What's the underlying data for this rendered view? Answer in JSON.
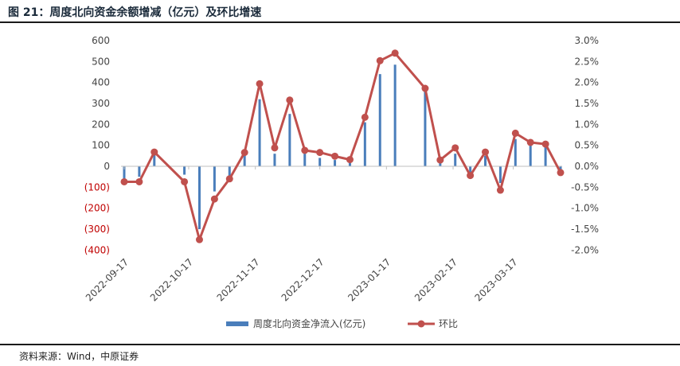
{
  "header": {
    "title": "图 21：周度北向资金余额增减（亿元）及环比增速"
  },
  "footer": {
    "source": "资料来源：Wind，中原证券"
  },
  "colors": {
    "bar": "#4a7ebb",
    "line": "#c0504d",
    "negative_label": "#c00000",
    "rule": "#1a1a1a"
  },
  "chart_data": {
    "type": "bar",
    "x_type": "date",
    "x_tick_labels": [
      "2022-09-17",
      "2022-10-17",
      "2022-11-17",
      "2022-12-17",
      "2023-01-17",
      "2023-02-17",
      "2023-03-17"
    ],
    "dates": [
      "2022-09-17",
      "2022-09-24",
      "2022-10-01",
      "2022-10-08",
      "2022-10-15",
      "2022-10-22",
      "2022-10-29",
      "2022-11-05",
      "2022-11-12",
      "2022-11-19",
      "2022-11-26",
      "2022-12-03",
      "2022-12-10",
      "2022-12-17",
      "2022-12-24",
      "2022-12-31",
      "2023-01-07",
      "2023-01-14",
      "2023-01-21",
      "2023-01-28",
      "2023-02-04",
      "2023-02-11",
      "2023-02-18",
      "2023-02-25",
      "2023-03-04",
      "2023-03-11",
      "2023-03-18",
      "2023-03-25",
      "2023-04-01",
      "2023-04-08"
    ],
    "series": [
      {
        "name": "周度北向资金净流入(亿元)",
        "type": "bar",
        "axis": "left",
        "values": [
          -60,
          -50,
          70,
          null,
          -40,
          -300,
          -120,
          -50,
          60,
          320,
          60,
          250,
          60,
          40,
          30,
          20,
          210,
          440,
          485,
          null,
          360,
          20,
          60,
          -30,
          50,
          -80,
          130,
          110,
          100,
          -15
        ]
      },
      {
        "name": "环比",
        "type": "line",
        "axis": "right",
        "values": [
          -0.37,
          -0.37,
          0.34,
          null,
          -0.37,
          -1.75,
          -0.78,
          -0.3,
          0.33,
          1.97,
          0.44,
          1.58,
          0.38,
          0.33,
          0.24,
          0.16,
          1.17,
          2.52,
          2.7,
          null,
          1.86,
          0.15,
          0.44,
          -0.22,
          0.34,
          -0.57,
          0.79,
          0.57,
          0.53,
          -0.15
        ]
      }
    ],
    "y_left": {
      "min": -400,
      "max": 600,
      "ticks": [
        600,
        500,
        400,
        300,
        200,
        100,
        0,
        -100,
        -200,
        -300,
        -400
      ],
      "labels": [
        "600",
        "500",
        "400",
        "300",
        "200",
        "100",
        "0",
        "(100)",
        "(200)",
        "(300)",
        "(400)"
      ]
    },
    "y_right": {
      "min": -2.0,
      "max": 3.0,
      "ticks": [
        3.0,
        2.5,
        2.0,
        1.5,
        1.0,
        0.5,
        0.0,
        -0.5,
        -1.0,
        -1.5,
        -2.0
      ],
      "labels": [
        "3.0%",
        "2.5%",
        "2.0%",
        "1.5%",
        "1.0%",
        "0.5%",
        "0.0%",
        "-0.5%",
        "-1.0%",
        "-1.5%",
        "-2.0%"
      ]
    },
    "legend_position": "bottom-center",
    "grid": false
  }
}
